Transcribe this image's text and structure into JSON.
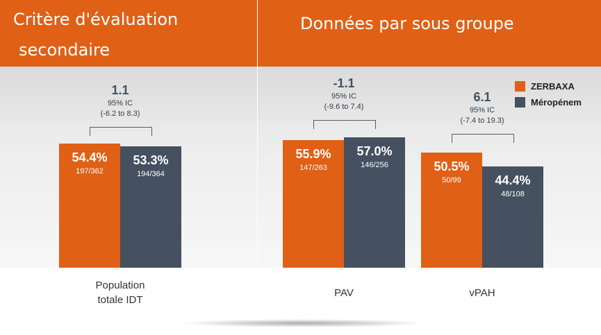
{
  "header": {
    "left_title_line1": "Critère d'évaluation",
    "left_title_line2": "secondaire",
    "right_title": "Données par sous groupe"
  },
  "colors": {
    "zerbaxa": "#E06016",
    "meropenem": "#455060",
    "header": "#E06016"
  },
  "legend": [
    {
      "name": "ZERBAXA",
      "color": "#E06016"
    },
    {
      "name": "Méropénem",
      "color": "#455060"
    }
  ],
  "chart_data": {
    "type": "bar",
    "title": "",
    "xlabel": "",
    "ylabel": "",
    "ylim": [
      0,
      100
    ],
    "categories": [
      "Population\ntotale IDT",
      "PAV",
      "vPAH"
    ],
    "series": [
      {
        "name": "ZERBAXA",
        "values": [
          54.4,
          55.9,
          50.5
        ],
        "value_labels": [
          "54.4%",
          "55.9%",
          "50.5%"
        ],
        "fractions": [
          "197/362",
          "147/263",
          "50/99"
        ]
      },
      {
        "name": "Méropénem",
        "values": [
          53.3,
          57.0,
          44.4
        ],
        "value_labels": [
          "53.3%",
          "57.0%",
          "44.4%"
        ],
        "fractions": [
          "194/364",
          "146/256",
          "48/108"
        ]
      }
    ],
    "differences": [
      {
        "value": "1.1",
        "ci_label": "95% IC",
        "ci_range": "(-6.2 to 8.3)"
      },
      {
        "value": "-1.1",
        "ci_label": "95% IC",
        "ci_range": "(-9.6 to 7.4)"
      },
      {
        "value": "6.1",
        "ci_label": "95% IC",
        "ci_range": "(-7.4 to 19.3)"
      }
    ]
  }
}
